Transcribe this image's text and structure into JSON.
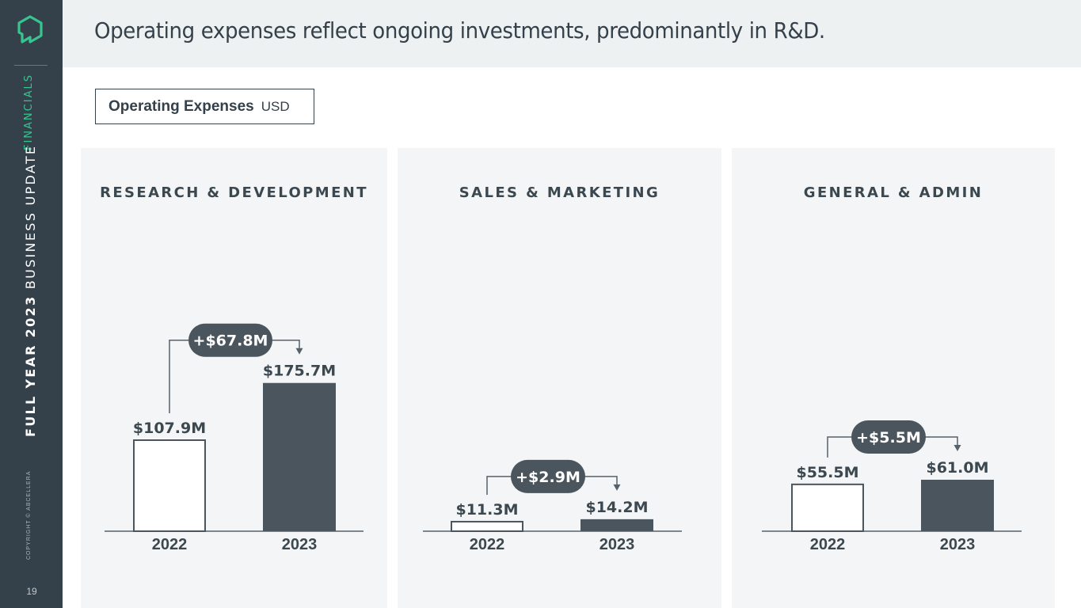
{
  "sidebar": {
    "section": "FINANCIALS",
    "title_bold": "FULL YEAR 2023",
    "title_rest": " BUSINESS UPDATE",
    "copyright": "COPYRIGHT © ABCELLERA",
    "page_number": "19"
  },
  "header": {
    "title": "Operating expenses reflect ongoing investments, predominantly in R&D."
  },
  "legend": {
    "label": "Operating Expenses",
    "unit": "USD"
  },
  "colors": {
    "sidebar": "#34404a",
    "accent": "#37c48f",
    "bar_2023": "#4a555e",
    "bar_2022_fill": "#ffffff",
    "pill": "#4a555e",
    "panel_bg": "#f4f5f6"
  },
  "chart_data": [
    {
      "type": "bar",
      "title": "RESEARCH & DEVELOPMENT",
      "categories": [
        "2022",
        "2023"
      ],
      "values": [
        107.9,
        175.7
      ],
      "value_labels": [
        "$107.9M",
        "$175.7M"
      ],
      "change_label": "+$67.8M",
      "unit": "USD millions"
    },
    {
      "type": "bar",
      "title": "SALES & MARKETING",
      "categories": [
        "2022",
        "2023"
      ],
      "values": [
        11.3,
        14.2
      ],
      "value_labels": [
        "$11.3M",
        "$14.2M"
      ],
      "change_label": "+$2.9M",
      "unit": "USD millions"
    },
    {
      "type": "bar",
      "title": "GENERAL & ADMIN",
      "categories": [
        "2022",
        "2023"
      ],
      "values": [
        55.5,
        61.0
      ],
      "value_labels": [
        "$55.5M",
        "$61.0M"
      ],
      "change_label": "+$5.5M",
      "unit": "USD millions"
    }
  ]
}
